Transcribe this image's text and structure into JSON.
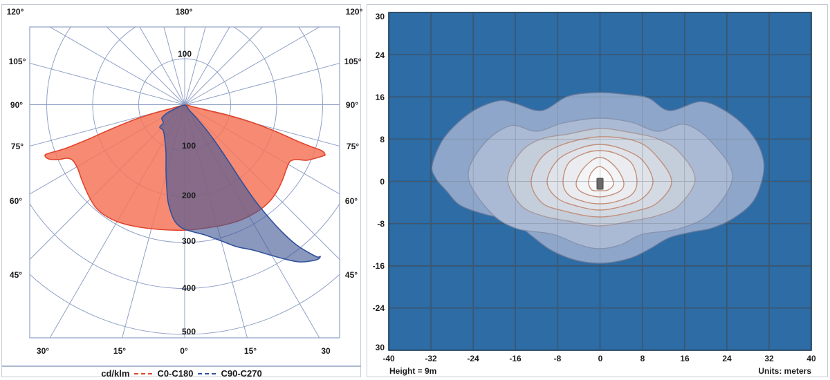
{
  "left_panel": {
    "top_labels": [
      "120°",
      "180°",
      "120°"
    ],
    "left_labels": [
      "105°",
      "90°",
      "75°",
      "60°",
      "45°"
    ],
    "right_labels": [
      "105°",
      "90°",
      "75°",
      "60°",
      "45°"
    ],
    "bottom_labels": [
      "30°",
      "15°",
      "0°",
      "15°",
      "30"
    ],
    "radial_top_label": "100",
    "radial_labels": [
      "100",
      "200",
      "300",
      "400",
      "500"
    ],
    "legend": {
      "unit_label": "cd/klm",
      "series": [
        {
          "label": "C0-C180",
          "color": "#e0452c"
        },
        {
          "label": "C90-C270",
          "color": "#31519a"
        }
      ]
    },
    "colors": {
      "grid": "#8fa0c6",
      "c0_fill": "rgba(244,118,90,0.85)",
      "c0_stroke": "#e0452c",
      "c90_fill": "rgba(66,88,150,0.62)",
      "c90_stroke": "#31519a"
    }
  },
  "right_panel": {
    "y_labels": [
      "30",
      "24",
      "16",
      "8",
      "0",
      "-8",
      "-16",
      "-24",
      "30"
    ],
    "x_labels": [
      "-40",
      "-32",
      "-24",
      "-16",
      "-8",
      "0",
      "8",
      "16",
      "24",
      "32",
      "40"
    ],
    "height_label": "Height = 9m",
    "units_label": "Units: meters",
    "colors": {
      "background": "#2d6ca4",
      "grid": "#1f3a52",
      "grid_overlay": "rgba(120,128,145,0.45)",
      "pole_fill": "#6a6a6a",
      "pole_stroke": "#474747"
    }
  },
  "chart_data": [
    {
      "type": "line",
      "subtype": "polar-photometric",
      "title": "Luminous intensity distribution",
      "units": "cd/klm",
      "radial_ticks": [
        100,
        200,
        300,
        400,
        500
      ],
      "radial_max": 500,
      "angle_ticks_deg": [
        0,
        15,
        30,
        45,
        60,
        75,
        90,
        105,
        120,
        135,
        150,
        165,
        180
      ],
      "angle_convention": "0 deg = nadir (down), 90 deg = horizontal, 180 deg = up",
      "series": [
        {
          "name": "C0-C180",
          "color": "#e0452c",
          "symmetric": true,
          "angles_deg": [
            0,
            15,
            30,
            45,
            60,
            70,
            75,
            80,
            85,
            90
          ],
          "values_cd_per_klm": [
            272,
            288,
            298,
            300,
            292,
            272,
            305,
            240,
            90,
            0
          ]
        },
        {
          "name": "C90-C270",
          "color": "#31519a",
          "symmetric": false,
          "angles_deg": [
            -75,
            -60,
            -45,
            -30,
            -15,
            0,
            15,
            30,
            40,
            50,
            60,
            75,
            85
          ],
          "values_cd_per_klm": [
            30,
            55,
            70,
            95,
            170,
            287,
            330,
            405,
            440,
            385,
            250,
            60,
            10
          ]
        }
      ]
    },
    {
      "type": "heatmap",
      "subtype": "isolux-contour",
      "title": "Isolux contour plot on ground plane",
      "xlim": [
        -40,
        40
      ],
      "ylim": [
        -30,
        30
      ],
      "x_tick_step": 8,
      "y_tick_labels": [
        30,
        24,
        16,
        8,
        0,
        -8,
        -16,
        -24,
        30
      ],
      "mounting_height": "9m",
      "units": "meters",
      "pole_marker": {
        "x": 0,
        "y": -0.7
      },
      "levels": [
        {
          "fill": "#8ea6c9",
          "stroke": "#64789c",
          "x_extent": [
            -32,
            31.5
          ],
          "y_extent": [
            -15.5,
            16.5
          ]
        },
        {
          "fill": "#abbad4",
          "stroke": "#8593af",
          "x_extent": [
            -25,
            25
          ],
          "y_extent": [
            -12.7,
            12
          ]
        },
        {
          "fill": "#c4cdda",
          "stroke": "#a59a9e",
          "x_extent": [
            -17.5,
            18
          ],
          "y_extent": [
            -8.5,
            10
          ]
        },
        {
          "fill": "#d4dae3",
          "stroke": "#c18e7a",
          "x_extent": [
            -13,
            13.5
          ],
          "y_extent": [
            -6.8,
            8.5
          ]
        },
        {
          "fill": "#e0e4ea",
          "stroke": "#c18e7a",
          "x_extent": [
            -10,
            10
          ],
          "y_extent": [
            -5.5,
            7
          ]
        },
        {
          "fill": "#eaecf0",
          "stroke": "#c18e7a",
          "x_extent": [
            -7,
            7
          ],
          "y_extent": [
            -4.2,
            5.8
          ]
        },
        {
          "fill": "#f3f4f6",
          "stroke": "#c18e7a",
          "x_extent": [
            -4.5,
            4.5
          ],
          "y_extent": [
            -3,
            4.5
          ]
        },
        {
          "fill": "#fcfcfd",
          "stroke": "#c18e7a",
          "x_extent": [
            -2.2,
            2.6
          ],
          "y_extent": [
            -1.8,
            2.8
          ]
        }
      ]
    }
  ]
}
